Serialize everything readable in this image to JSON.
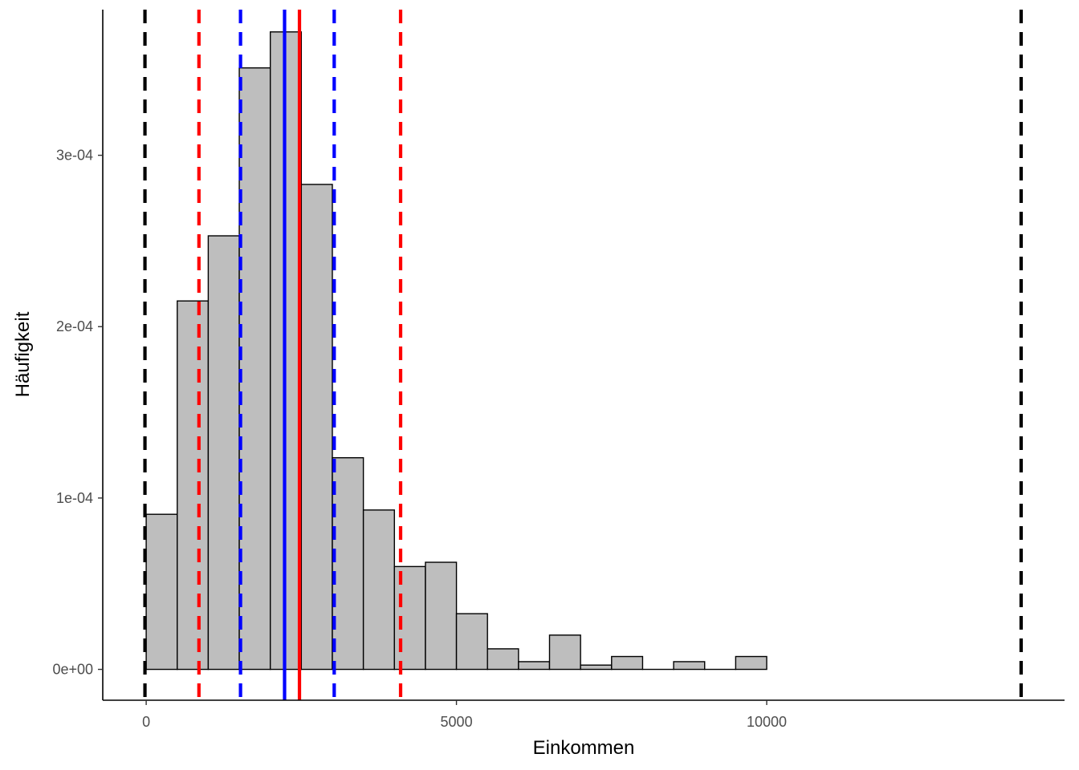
{
  "chart_data": {
    "type": "bar",
    "subtype": "histogram",
    "title": "",
    "xlabel": "Einkommen",
    "ylabel": "Häufigkeit",
    "xlim": [
      -700,
      14800
    ],
    "ylim": [
      -1.8e-05,
      0.000385
    ],
    "grid": false,
    "x_ticks": [
      {
        "value": 0,
        "label": "0"
      },
      {
        "value": 5000,
        "label": "5000"
      },
      {
        "value": 10000,
        "label": "10000"
      }
    ],
    "y_ticks": [
      {
        "value": 0,
        "label": "0e+00"
      },
      {
        "value": 0.0001,
        "label": "1e-04"
      },
      {
        "value": 0.0002,
        "label": "2e-04"
      },
      {
        "value": 0.0003,
        "label": "3e-04"
      }
    ],
    "bin_width": 500,
    "bins": [
      {
        "start": 0,
        "value": 9.05e-05
      },
      {
        "start": 500,
        "value": 0.000215
      },
      {
        "start": 1000,
        "value": 0.000253
      },
      {
        "start": 1500,
        "value": 0.000351
      },
      {
        "start": 2000,
        "value": 0.000372
      },
      {
        "start": 2500,
        "value": 0.000283
      },
      {
        "start": 3000,
        "value": 0.0001235
      },
      {
        "start": 3500,
        "value": 9.3e-05
      },
      {
        "start": 4000,
        "value": 6e-05
      },
      {
        "start": 4500,
        "value": 6.25e-05
      },
      {
        "start": 5000,
        "value": 3.25e-05
      },
      {
        "start": 5500,
        "value": 1.2e-05
      },
      {
        "start": 6000,
        "value": 4.5e-06
      },
      {
        "start": 6500,
        "value": 2e-05
      },
      {
        "start": 7000,
        "value": 2.5e-06
      },
      {
        "start": 7500,
        "value": 7.5e-06
      },
      {
        "start": 8000,
        "value": 0.0
      },
      {
        "start": 8500,
        "value": 4.5e-06
      },
      {
        "start": 9000,
        "value": 0.0
      },
      {
        "start": 9500,
        "value": 7.5e-06
      }
    ],
    "vertical_lines": [
      {
        "x": -20,
        "color": "#000000",
        "style": "dashed"
      },
      {
        "x": 14100,
        "color": "#000000",
        "style": "dashed"
      },
      {
        "x": 850,
        "color": "#ff0000",
        "style": "dashed"
      },
      {
        "x": 4100,
        "color": "#ff0000",
        "style": "dashed"
      },
      {
        "x": 1520,
        "color": "#0000ff",
        "style": "dashed"
      },
      {
        "x": 3030,
        "color": "#0000ff",
        "style": "dashed"
      },
      {
        "x": 2230,
        "color": "#0000ff",
        "style": "solid"
      },
      {
        "x": 2470,
        "color": "#ff0000",
        "style": "solid"
      }
    ],
    "colors": {
      "bar_fill": "#bebebe",
      "bar_stroke": "#000000",
      "axis": "#000000",
      "tick_label": "#4d4d4d"
    }
  }
}
